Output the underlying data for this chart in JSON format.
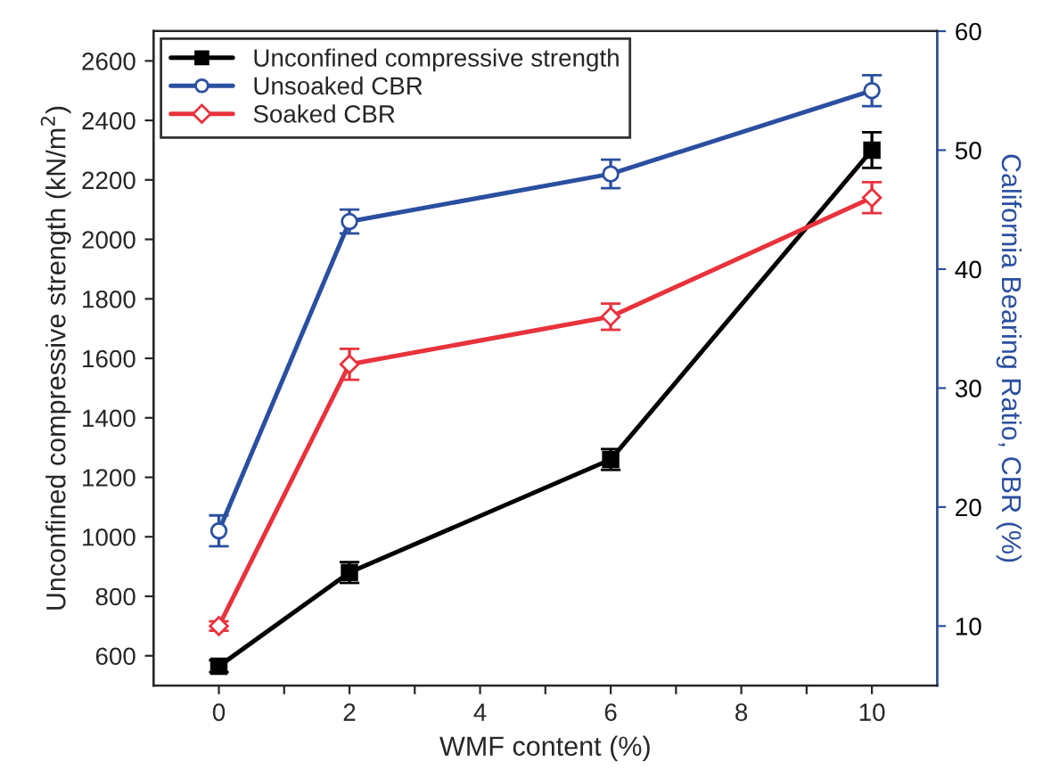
{
  "chart_data": {
    "type": "line",
    "xlabel": "WMF content (%)",
    "ylabel": "Unconfined compressive strength (kN/m$^{2}$)",
    "y2label": "California Bearing Ratio, CBR (%)",
    "x": [
      0,
      2,
      6,
      10
    ],
    "series": [
      {
        "name": "Unconfined compressive strength",
        "color": "#000000",
        "marker": "square",
        "values": [
          565,
          880,
          1260,
          2300
        ],
        "errors": [
          20,
          35,
          35,
          60
        ]
      },
      {
        "name": "Unsoaked CBR",
        "color": "#2b4fa0",
        "marker": "circle",
        "axis": "y2",
        "values": [
          18,
          44,
          48,
          55
        ],
        "errors": [
          1.3,
          1.0,
          1.2,
          1.3
        ]
      },
      {
        "name": "Soaked CBR",
        "color": "#e8323c",
        "marker": "diamond",
        "axis": "y2",
        "values": [
          10,
          32,
          36,
          46
        ],
        "errors": [
          0.4,
          1.3,
          1.1,
          1.3
        ]
      }
    ],
    "xlim": [
      -1,
      11
    ],
    "xticks": [
      0,
      {
        "value": 1,
        "label": null
      },
      2,
      {
        "value": 3,
        "label": null
      },
      4,
      {
        "value": 5,
        "label": null
      },
      6,
      {
        "value": 7,
        "label": null
      },
      8,
      {
        "value": 9,
        "label": null
      },
      10
    ],
    "ylim": [
      500,
      2700
    ],
    "yticks": [
      600,
      800,
      1000,
      1200,
      1400,
      1600,
      1800,
      2000,
      2200,
      2400,
      2600
    ],
    "y2lim": [
      5,
      60
    ],
    "y2ticks": [
      10,
      20,
      30,
      40,
      50,
      60
    ],
    "legend": "top left",
    "grid": false,
    "line_style": "solid"
  }
}
